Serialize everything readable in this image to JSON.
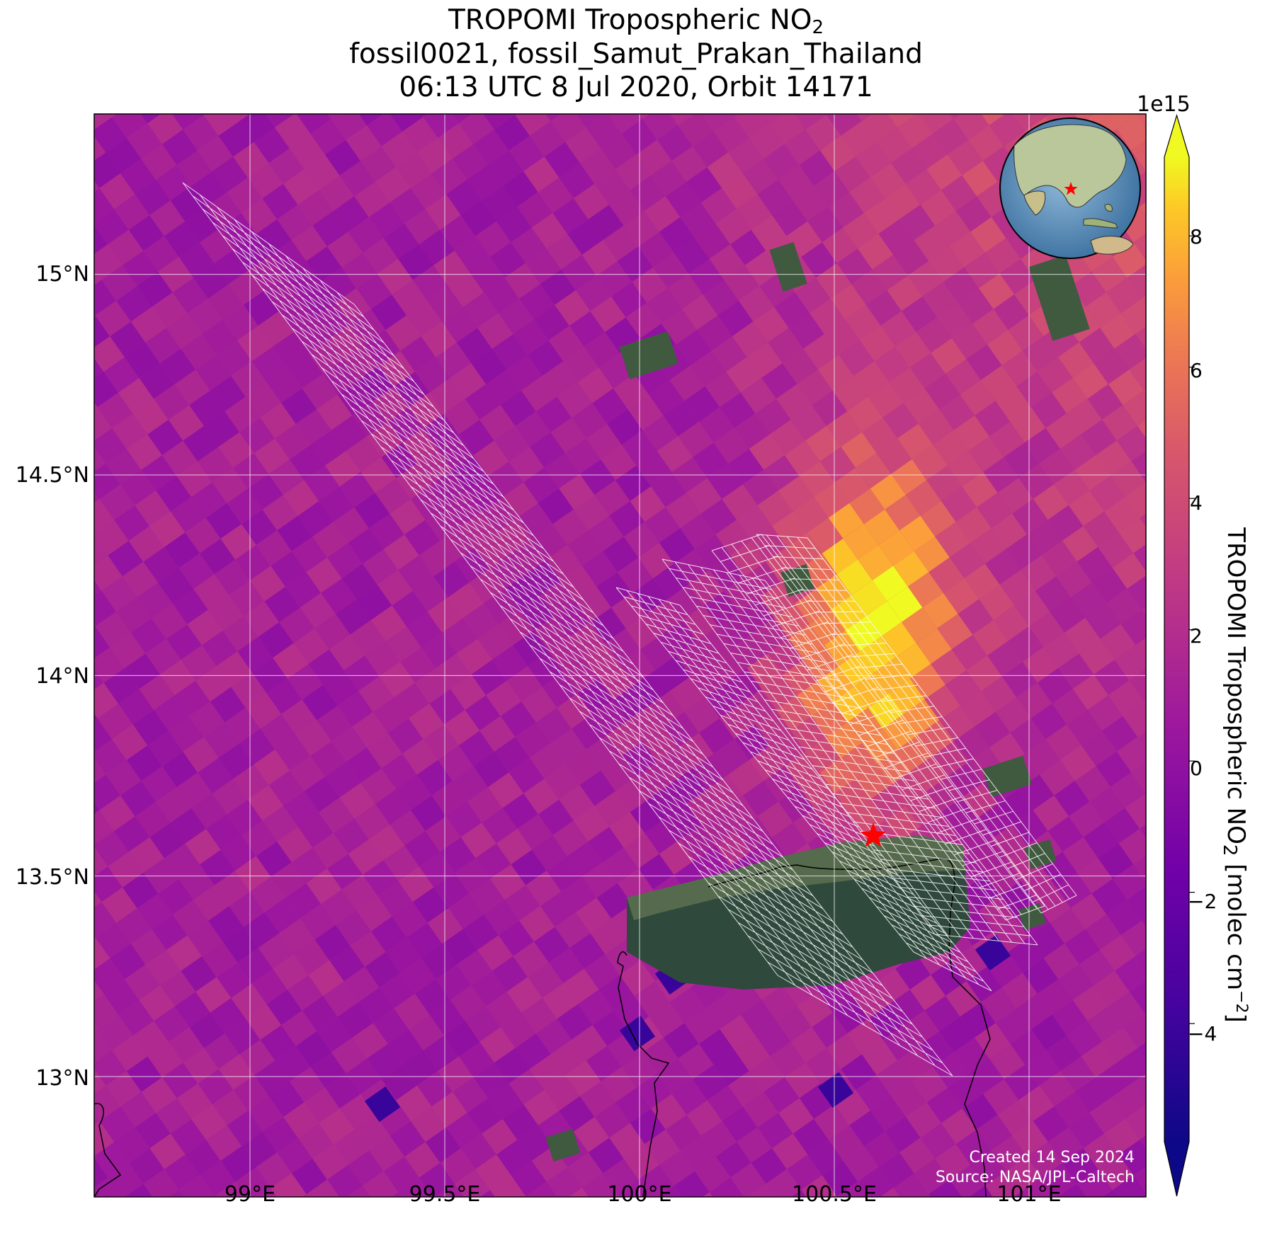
{
  "title": {
    "line1_main": "TROPOMI Tropospheric NO",
    "line1_sub": "2",
    "line2": "fossil0021, fossil_Samut_Prakan_Thailand",
    "line3": "06:13 UTC 8 Jul 2020, Orbit 14171"
  },
  "map": {
    "lon_range": [
      98.6,
      101.3
    ],
    "lat_range": [
      12.7,
      15.4
    ],
    "lon_ticks": [
      {
        "value": 99.0,
        "label": "99°E"
      },
      {
        "value": 99.5,
        "label": "99.5°E"
      },
      {
        "value": 100.0,
        "label": "100°E"
      },
      {
        "value": 100.5,
        "label": "100.5°E"
      },
      {
        "value": 101.0,
        "label": "101°E"
      }
    ],
    "lat_ticks": [
      {
        "value": 15.0,
        "label": "15°N"
      },
      {
        "value": 14.5,
        "label": "14.5°N"
      },
      {
        "value": 14.0,
        "label": "14°N"
      },
      {
        "value": 13.5,
        "label": "13.5°N"
      },
      {
        "value": 13.0,
        "label": "13°N"
      }
    ],
    "target_marker": {
      "lon": 100.6,
      "lat": 13.6,
      "color": "#ff0000"
    },
    "grid": true,
    "inset": "globe-locator (Southeast Asia, red star on Thailand)"
  },
  "colorbar": {
    "label_main": "TROPOMI Tropospheric NO",
    "label_sub": "2",
    "label_unit": " [molec cm",
    "label_exp": "−2",
    "label_end": "]",
    "multiplier": "1e15",
    "range": [
      -5.8,
      9.2
    ],
    "colormap": "plasma",
    "ticks": [
      {
        "value": 8,
        "label": "8"
      },
      {
        "value": 6,
        "label": "6"
      },
      {
        "value": 4,
        "label": "4"
      },
      {
        "value": 2,
        "label": "2"
      },
      {
        "value": 0,
        "label": "0"
      },
      {
        "value": -2,
        "label": "−2"
      },
      {
        "value": -4,
        "label": "−4"
      }
    ],
    "extend": "both"
  },
  "credits": {
    "created": "Created 14 Sep 2024",
    "source": "Source: NASA/JPL-Caltech"
  }
}
